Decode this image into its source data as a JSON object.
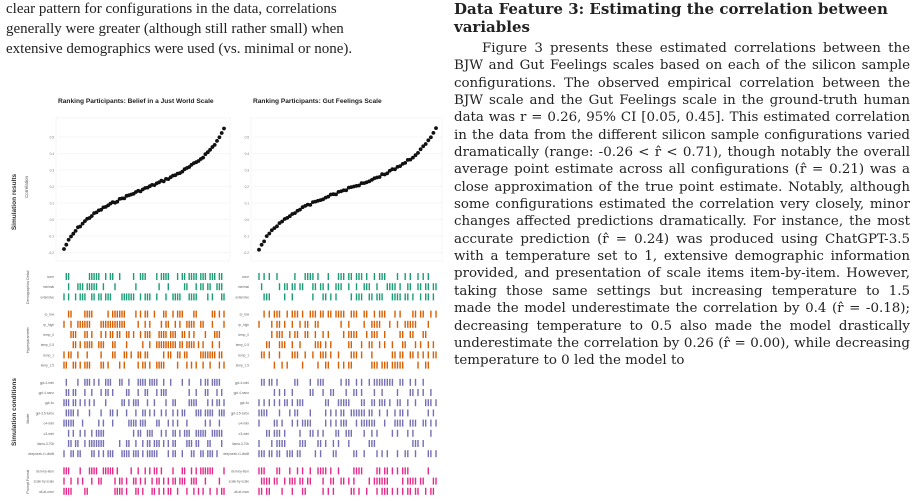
{
  "left_paragraph_lines": [
    "clear pattern for configurations in the data, correlations",
    "generally were greater (although still rather small) when",
    "extensive demographics were used (vs. minimal or none)."
  ],
  "figure": {
    "panels": [
      {
        "title": "Ranking Participants: Belief in a Just World Scale"
      },
      {
        "title": "Ranking Participants: Gut Feelings Scale"
      }
    ],
    "y_tick_labels": [
      "0.5",
      "0.4",
      "0.3",
      "0.2",
      "0.1",
      "0.0",
      "-0.1",
      "-0.2"
    ],
    "row_group_labels": {
      "simulation_results": "Simulation results",
      "correlation": "Correlation",
      "simulation_conditions": "Simulation conditions",
      "demographics": "Demographics Detail",
      "hyperparameter": "Hyperparameter",
      "model": "Model",
      "prompt": "Prompt Format"
    },
    "rows": [
      {
        "group": "demographics",
        "label": "none",
        "color": "#1b9e77"
      },
      {
        "group": "demographics",
        "label": "minimal",
        "color": "#1b9e77"
      },
      {
        "group": "demographics",
        "label": "extensive",
        "color": "#1b9e77"
      },
      {
        "group": "hyperparameter",
        "label": "rp_low",
        "color": "#d95f02"
      },
      {
        "group": "hyperparameter",
        "label": "rp_high",
        "color": "#d95f02"
      },
      {
        "group": "hyperparameter",
        "label": "temp_0",
        "color": "#d95f02"
      },
      {
        "group": "hyperparameter",
        "label": "temp_0.5",
        "color": "#d95f02"
      },
      {
        "group": "hyperparameter",
        "label": "temp_1",
        "color": "#d95f02"
      },
      {
        "group": "hyperparameter",
        "label": "temp_1.5",
        "color": "#d95f02"
      },
      {
        "group": "model",
        "label": "gpt-4-mini",
        "color": "#7570b3"
      },
      {
        "group": "model",
        "label": "gpt-4-nano",
        "color": "#7570b3"
      },
      {
        "group": "model",
        "label": "gpt-4o",
        "color": "#7570b3"
      },
      {
        "group": "model",
        "label": "gpt-3.5-turbo",
        "color": "#7570b3"
      },
      {
        "group": "model",
        "label": "o4-mini",
        "color": "#7570b3"
      },
      {
        "group": "model",
        "label": "o3-mini",
        "color": "#7570b3"
      },
      {
        "group": "model",
        "label": "llama-3-70b",
        "color": "#7570b3"
      },
      {
        "group": "model",
        "label": "deepseek-r1-distill",
        "color": "#7570b3"
      },
      {
        "group": "prompt",
        "label": "item-by-item",
        "color": "#e7298a"
      },
      {
        "group": "prompt",
        "label": "scale-by-scale",
        "color": "#e7298a"
      },
      {
        "group": "prompt",
        "label": "all-at-once",
        "color": "#e7298a"
      }
    ]
  },
  "right": {
    "heading": "Data Feature 3: Estimating the correlation between variables",
    "paragraph": "Figure 3 presents these estimated correlations between the BJW and Gut Feelings scales based on each of the silicon sample configurations. The observed empirical correlation between the BJW scale and the Gut Feelings scale in the ground-truth human data was r = 0.26, 95% CI [0.05, 0.45]. This estimated correlation in the data from the different silicon sample configurations varied dramatically (range: -0.26 < r̂ < 0.71), though notably the overall average point estimate across all configurations (r̂ = 0.21) was a close approximation of the true point estimate. Notably, although some configurations estimated the correlation very closely, minor changes affected predictions dramatically. For instance, the most accurate prediction (r̂ = 0.24) was produced using ChatGPT-3.5 with a temperature set to 1, extensive demographic information provided, and presentation of scale items item-by-item. However, taking those same settings but increasing temperature to 1.5 made the model underestimate the correlation by 0.4 (r̂ = -0.18); decreasing temperature to 0.5 also made the model drastically underestimate the correlation by 0.26 (r̂ = 0.00), while decreasing temperature to 0 led the model to"
  }
}
